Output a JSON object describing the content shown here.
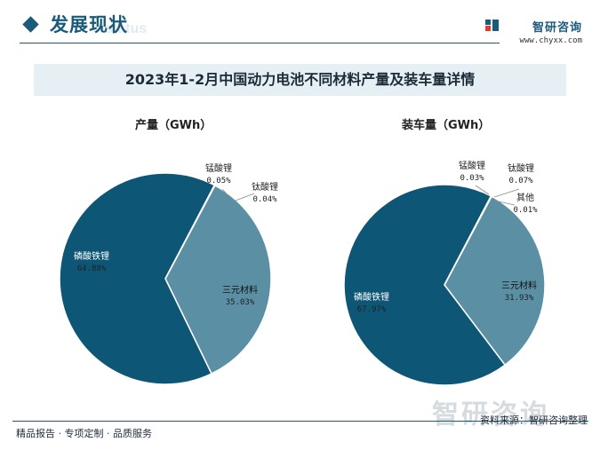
{
  "header": {
    "section_title": "发展现状",
    "section_title_bg": "status",
    "brand_name": "智研咨询",
    "brand_url": "www.chyxx.com"
  },
  "figure_title": "2023年1-2月中国动力电池不同材料产量及装车量详情",
  "chart_data": [
    {
      "type": "pie",
      "title": "产量（GWh）",
      "slices": [
        {
          "label": "三元材料",
          "value": 35.03,
          "value_label": "35.03%",
          "color": "#5b8fa3"
        },
        {
          "label": "磷酸铁锂",
          "value": 64.88,
          "value_label": "64.88%",
          "color": "#0e5675"
        },
        {
          "label": "锰酸锂",
          "value": 0.05,
          "value_label": "0.05%",
          "color": "#0e5675"
        },
        {
          "label": "钛酸锂",
          "value": 0.04,
          "value_label": "0.04%",
          "color": "#5b8fa3"
        }
      ]
    },
    {
      "type": "pie",
      "title": "装车量（GWh）",
      "slices": [
        {
          "label": "三元材料",
          "value": 31.93,
          "value_label": "31.93%",
          "color": "#5b8fa3"
        },
        {
          "label": "磷酸铁锂",
          "value": 67.97,
          "value_label": "67.97%",
          "color": "#0e5675"
        },
        {
          "label": "锰酸锂",
          "value": 0.03,
          "value_label": "0.03%",
          "color": "#0e5675"
        },
        {
          "label": "钛酸锂",
          "value": 0.07,
          "value_label": "0.07%",
          "color": "#5b8fa3"
        },
        {
          "label": "其他",
          "value": 0.01,
          "value_label": "0.01%",
          "color": "#5b8fa3"
        }
      ]
    }
  ],
  "footer": {
    "left": "精品报告 · 专项定制 · 品质服务",
    "source": "资料来源：智研咨询整理",
    "watermark": "智研咨询"
  }
}
